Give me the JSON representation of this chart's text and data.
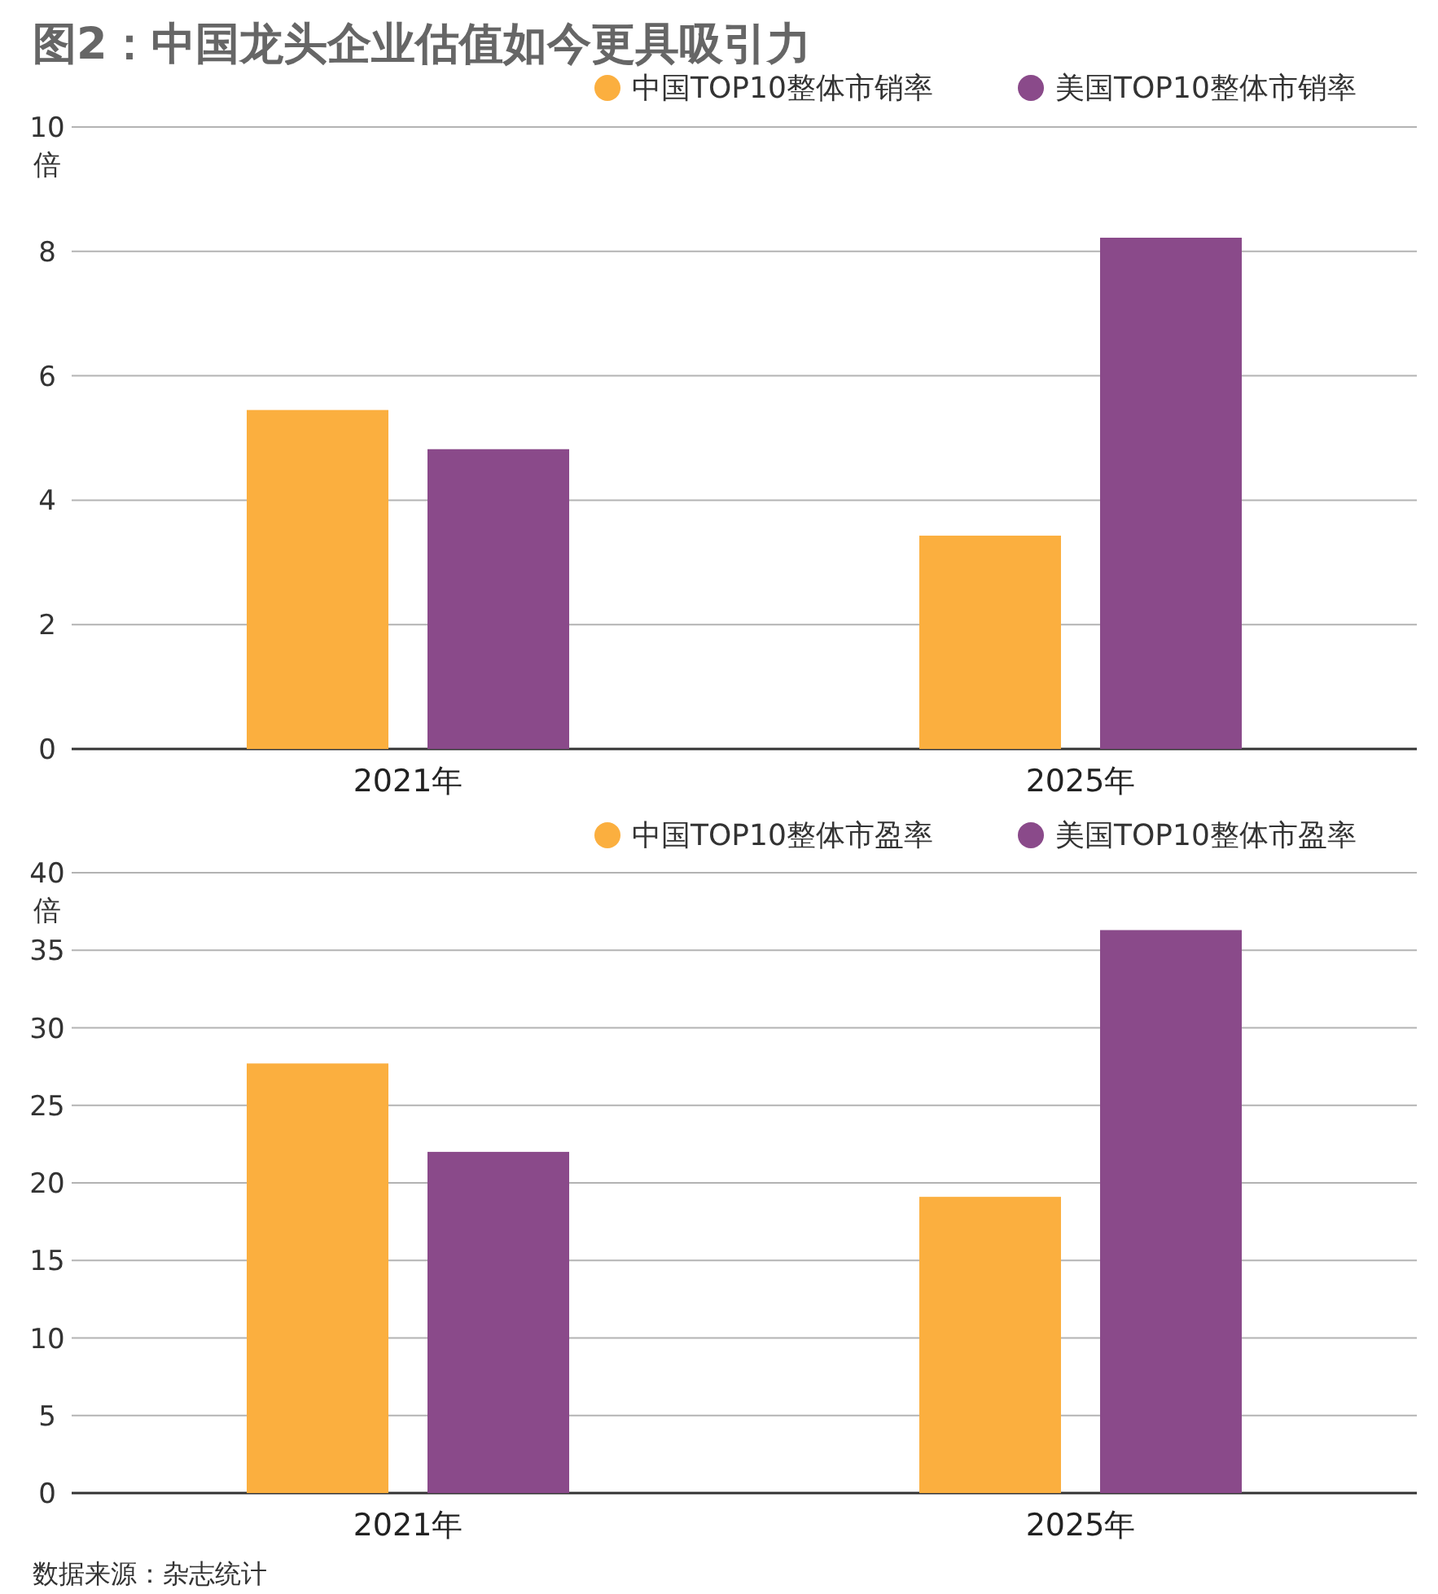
{
  "chart_data": [
    {
      "type": "bar",
      "title": "图2：中国龙头企业估值如今更具吸引力",
      "ylabel": "倍",
      "categories": [
        "2021年",
        "2025年"
      ],
      "series": [
        {
          "name": "中国TOP10整体市销率",
          "color": "#fbaf3f",
          "values": [
            5.45,
            3.43
          ]
        },
        {
          "name": "美国TOP10整体市销率",
          "color": "#8a4a8a",
          "values": [
            4.82,
            8.22
          ]
        }
      ],
      "ylim": [
        0,
        10
      ],
      "yticks": [
        0,
        2,
        4,
        6,
        8,
        10
      ],
      "grid": "y",
      "legend": "top right"
    },
    {
      "type": "bar",
      "ylabel": "倍",
      "categories": [
        "2021年",
        "2025年"
      ],
      "series": [
        {
          "name": "中国TOP10整体市盈率",
          "color": "#fbaf3f",
          "values": [
            27.7,
            19.1
          ]
        },
        {
          "name": "美国TOP10整体市盈率",
          "color": "#8a4a8a",
          "values": [
            22.0,
            36.3
          ]
        }
      ],
      "ylim": [
        0,
        40
      ],
      "yticks": [
        0,
        5,
        10,
        15,
        20,
        25,
        30,
        35,
        40
      ],
      "grid": "y",
      "legend": "top right",
      "annotations": [
        "数据来源：杂志统计"
      ]
    }
  ]
}
